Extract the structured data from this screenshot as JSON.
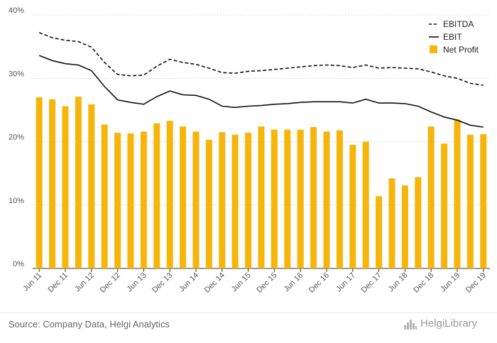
{
  "source_text": "Source: Company Data, Helgi Analytics",
  "brand_text": "HelgiLibrary",
  "colors": {
    "bar": "#f5b50a",
    "line": "#111111",
    "grid": "#d9d9d9",
    "axis": "#333333"
  },
  "chart_data": {
    "type": "bar",
    "x": [
      "Jun 11",
      "Sep 11",
      "Dec 11",
      "Mar 12",
      "Jun 12",
      "Sep 12",
      "Dec 12",
      "Mar 13",
      "Jun 13",
      "Sep 13",
      "Dec 13",
      "Mar 14",
      "Jun 14",
      "Sep 14",
      "Dec 14",
      "Mar 15",
      "Jun 15",
      "Sep 15",
      "Dec 15",
      "Mar 16",
      "Jun 16",
      "Sep 16",
      "Dec 16",
      "Mar 17",
      "Jun 17",
      "Sep 17",
      "Dec 17",
      "Mar 18",
      "Jun 18",
      "Sep 18",
      "Dec 18",
      "Mar 19",
      "Jun 19",
      "Sep 19",
      "Dec 19"
    ],
    "x_tick_labels": [
      "Jun 11",
      "Dec 11",
      "Jun 12",
      "Dec 12",
      "Jun 13",
      "Dec 13",
      "Jun 14",
      "Dec 14",
      "Jun 15",
      "Dec 15",
      "Jun 16",
      "Dec 16",
      "Jun 17",
      "Dec 17",
      "Jun 18",
      "Dec 18",
      "Jun 19",
      "Dec 19"
    ],
    "y_ticks": [
      "0%",
      "10%",
      "20%",
      "30%",
      "40%"
    ],
    "ylim": [
      0,
      40
    ],
    "grid": true,
    "legend_position": "top-right",
    "series": [
      {
        "name": "EBITDA",
        "type": "line",
        "dash": true,
        "values": [
          37.2,
          36.4,
          36.0,
          35.8,
          34.9,
          32.5,
          30.6,
          30.4,
          30.5,
          31.9,
          33.0,
          32.5,
          32.2,
          31.6,
          30.9,
          30.8,
          31.1,
          31.2,
          31.4,
          31.6,
          31.8,
          32.0,
          32.1,
          32.0,
          31.7,
          32.1,
          31.6,
          31.7,
          31.6,
          31.5,
          31.0,
          30.4,
          30.0,
          29.2,
          28.9
        ]
      },
      {
        "name": "EBIT",
        "type": "line",
        "dash": false,
        "values": [
          33.6,
          32.8,
          32.3,
          32.1,
          31.2,
          28.7,
          26.6,
          26.2,
          25.9,
          27.1,
          28.0,
          27.4,
          27.3,
          26.7,
          25.6,
          25.4,
          25.6,
          25.7,
          25.9,
          26.0,
          26.2,
          26.3,
          26.3,
          26.3,
          26.1,
          26.7,
          26.1,
          26.1,
          26.0,
          25.6,
          24.7,
          23.9,
          23.4,
          22.6,
          22.3
        ]
      },
      {
        "name": "Net Profit",
        "type": "bar",
        "values": [
          27.0,
          26.7,
          25.6,
          27.1,
          25.9,
          22.7,
          21.4,
          21.3,
          21.6,
          22.9,
          23.3,
          22.4,
          21.6,
          20.3,
          21.5,
          21.1,
          21.4,
          22.4,
          21.9,
          21.9,
          21.9,
          22.3,
          21.6,
          21.8,
          19.5,
          20.0,
          11.4,
          14.2,
          13.1,
          14.4,
          22.4,
          19.7,
          23.5,
          21.1,
          21.2
        ]
      }
    ]
  }
}
